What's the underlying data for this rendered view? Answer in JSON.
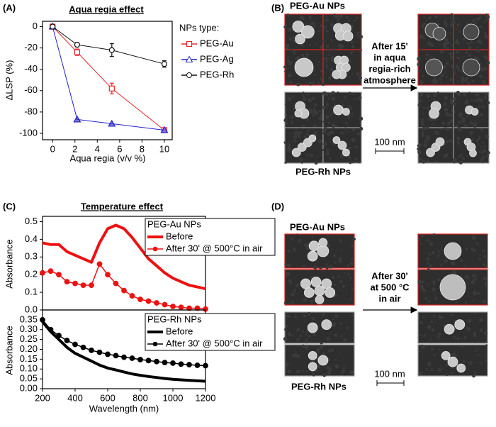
{
  "chart_data": [
    {
      "type": "line",
      "panel": "(A)",
      "title": "Aqua regia effect",
      "xlabel": "Aqua regia (v/v %)",
      "ylabel": "ΔLSP (%)",
      "x": [
        0,
        2.2,
        5.3,
        10
      ],
      "xlim": [
        -0.9,
        10.7
      ],
      "xticks": [
        0,
        2,
        4,
        6,
        8,
        10
      ],
      "ylim": [
        -106,
        5
      ],
      "yticks": [
        0,
        -20,
        -40,
        -60,
        -80,
        -100
      ],
      "legend_title": "NPs type:",
      "series": [
        {
          "name": "PEG-Au",
          "color": "#e8262a",
          "marker": "square",
          "values": [
            0,
            -24,
            -58,
            -97
          ],
          "errors": [
            0,
            3,
            5,
            1
          ]
        },
        {
          "name": "PEG-Ag",
          "color": "#2323c8",
          "marker": "triangle",
          "values": [
            0,
            -87,
            -91,
            -97
          ]
        },
        {
          "name": "PEG-Rh",
          "color": "#111111",
          "marker": "circle",
          "values": [
            0,
            -17,
            -22,
            -35
          ],
          "errors": [
            0,
            2,
            6,
            3
          ]
        }
      ]
    },
    {
      "type": "line",
      "panel": "(C)",
      "title": "Temperature effect",
      "ylabel": "Absorbance",
      "legend_title": "PEG-Au NPs",
      "x": [
        200,
        250,
        300,
        350,
        400,
        450,
        500,
        550,
        600,
        650,
        700,
        750,
        800,
        850,
        900,
        950,
        1000,
        1050,
        1100,
        1150,
        1200
      ],
      "xlim": [
        200,
        1200
      ],
      "ylim": [
        0,
        0.53
      ],
      "yticks": [
        {
          "value": 0,
          "label": "0.0"
        },
        0.1,
        0.2,
        0.3,
        0.4,
        0.5
      ],
      "series": [
        {
          "name": "Before",
          "color": "#ee1111",
          "marker": "none",
          "values": [
            0.38,
            0.37,
            0.37,
            0.33,
            0.31,
            0.29,
            0.27,
            0.38,
            0.46,
            0.48,
            0.46,
            0.41,
            0.35,
            0.29,
            0.25,
            0.21,
            0.18,
            0.16,
            0.14,
            0.13,
            0.12
          ]
        },
        {
          "name": "After 30' @ 500°C in air",
          "color": "#ee1111",
          "marker": "dot",
          "values": [
            0.21,
            0.22,
            0.2,
            0.16,
            0.15,
            0.14,
            0.14,
            0.26,
            0.2,
            0.15,
            0.11,
            0.08,
            0.06,
            0.05,
            0.04,
            0.03,
            0.02,
            0.015,
            0.01,
            0.01,
            0.005
          ]
        }
      ]
    },
    {
      "type": "line",
      "ylabel": "Absorbance",
      "xlabel": "Wavelength (nm)",
      "legend_title": "PEG-Rh NPs",
      "x": [
        200,
        250,
        300,
        350,
        400,
        450,
        500,
        550,
        600,
        650,
        700,
        750,
        800,
        850,
        900,
        950,
        1000,
        1050,
        1100,
        1150,
        1200
      ],
      "xlim": [
        200,
        1200
      ],
      "xticks": [
        200,
        400,
        600,
        800,
        1000,
        1200
      ],
      "ylim": [
        0,
        0.4
      ],
      "yticks": [
        {
          "value": 0,
          "label": "0.00"
        },
        0.05,
        {
          "value": 0.1,
          "label": "0.10"
        },
        0.15,
        {
          "value": 0.2,
          "label": "0.20"
        },
        0.25,
        {
          "value": 0.3,
          "label": "0.30"
        },
        0.35
      ],
      "series": [
        {
          "name": "Before",
          "color": "#000000",
          "marker": "none",
          "values": [
            0.34,
            0.29,
            0.25,
            0.21,
            0.18,
            0.16,
            0.14,
            0.12,
            0.105,
            0.095,
            0.085,
            0.075,
            0.068,
            0.062,
            0.057,
            0.052,
            0.048,
            0.045,
            0.042,
            0.04,
            0.038
          ]
        },
        {
          "name": "After 30' @ 500°C in air",
          "color": "#000000",
          "marker": "dot",
          "values": [
            0.35,
            0.3,
            0.27,
            0.245,
            0.225,
            0.21,
            0.195,
            0.185,
            0.175,
            0.168,
            0.16,
            0.155,
            0.148,
            0.143,
            0.138,
            0.133,
            0.13,
            0.125,
            0.122,
            0.119,
            0.117
          ]
        }
      ]
    }
  ],
  "images": {
    "B": {
      "panel": "(B)",
      "top": "PEG-Au NPs",
      "caption": [
        "After 15'",
        "in aqua",
        "regia-rich",
        "atmosphere"
      ],
      "scale": "100 nm",
      "bottom": "PEG-Rh NPs"
    },
    "D": {
      "panel": "(D)",
      "top": "PEG-Au NPs",
      "caption": [
        "After 30'",
        "at 500 °C",
        "in air"
      ],
      "scale": "100 nm",
      "bottom": "PEG-Rh NPs"
    }
  }
}
